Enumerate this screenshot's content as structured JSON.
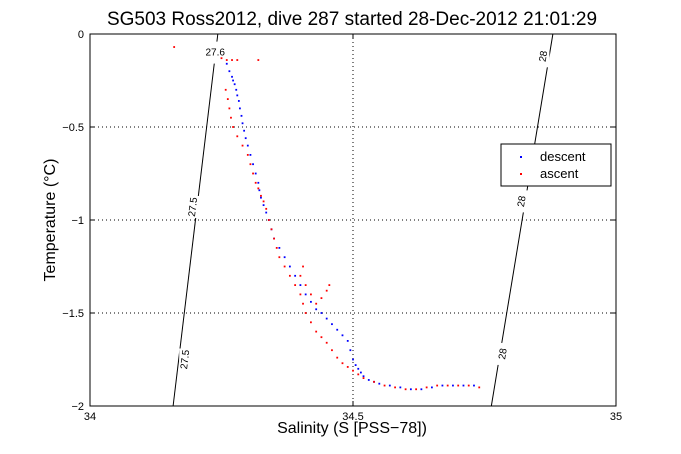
{
  "chart_data": {
    "type": "scatter",
    "title": "SG503 Ross2012, dive 287 started 28-Dec-2012 21:01:29",
    "xlabel": "Salinity (S [PSS−78])",
    "ylabel": "Temperature (°C)",
    "xlim": [
      34,
      35
    ],
    "ylim": [
      -2,
      0
    ],
    "x_ticks": [
      34,
      34.5,
      35
    ],
    "x_tick_labels": [
      "34",
      "34.5",
      "35"
    ],
    "y_ticks": [
      0,
      -0.5,
      -1,
      -1.5,
      -2
    ],
    "y_tick_labels": [
      "0",
      "−0.5",
      "−1",
      "−1.5",
      "−2"
    ],
    "grid": true,
    "legend_position": "right",
    "colors": {
      "descent": "#0000ff",
      "ascent": "#ff0000",
      "contour": "#000000"
    },
    "contours": [
      {
        "label": "27.5",
        "points": [
          [
            34.158,
            -2.0
          ],
          [
            34.243,
            0.0
          ]
        ],
        "label_positions": [
          [
            34.181,
            -1.75
          ],
          [
            34.196,
            -0.93
          ]
        ]
      },
      {
        "label": "27.6",
        "points": [
          [
            34.243,
            0.0
          ],
          [
            34.244,
            0.0
          ]
        ],
        "label_positions": [
          [
            34.238,
            -0.1
          ]
        ]
      },
      {
        "label": "28",
        "points": [
          [
            34.763,
            -2.0
          ],
          [
            34.88,
            0.0
          ]
        ],
        "label_positions": [
          [
            34.785,
            -1.72
          ],
          [
            34.821,
            -0.9
          ],
          [
            34.862,
            -0.12
          ]
        ]
      }
    ],
    "series": [
      {
        "name": "descent",
        "points": [
          [
            34.26,
            -0.16
          ],
          [
            34.265,
            -0.2
          ],
          [
            34.27,
            -0.23
          ],
          [
            34.272,
            -0.25
          ],
          [
            34.275,
            -0.27
          ],
          [
            34.278,
            -0.3
          ],
          [
            34.28,
            -0.33
          ],
          [
            34.283,
            -0.36
          ],
          [
            34.285,
            -0.4
          ],
          [
            34.288,
            -0.44
          ],
          [
            34.29,
            -0.48
          ],
          [
            34.293,
            -0.52
          ],
          [
            34.296,
            -0.56
          ],
          [
            34.3,
            -0.6
          ],
          [
            34.305,
            -0.65
          ],
          [
            34.31,
            -0.7
          ],
          [
            34.315,
            -0.75
          ],
          [
            34.32,
            -0.8
          ],
          [
            34.322,
            -0.84
          ],
          [
            34.325,
            -0.88
          ],
          [
            34.33,
            -0.92
          ],
          [
            34.335,
            -0.96
          ],
          [
            34.34,
            -1.0
          ],
          [
            34.345,
            -1.05
          ],
          [
            34.35,
            -1.1
          ],
          [
            34.36,
            -1.15
          ],
          [
            34.37,
            -1.2
          ],
          [
            34.38,
            -1.25
          ],
          [
            34.39,
            -1.3
          ],
          [
            34.4,
            -1.35
          ],
          [
            34.41,
            -1.4
          ],
          [
            34.42,
            -1.44
          ],
          [
            34.43,
            -1.48
          ],
          [
            34.44,
            -1.5
          ],
          [
            34.45,
            -1.53
          ],
          [
            34.46,
            -1.56
          ],
          [
            34.47,
            -1.59
          ],
          [
            34.48,
            -1.62
          ],
          [
            34.49,
            -1.65
          ],
          [
            34.495,
            -1.7
          ],
          [
            34.5,
            -1.75
          ],
          [
            34.505,
            -1.78
          ],
          [
            34.51,
            -1.8
          ],
          [
            34.515,
            -1.82
          ],
          [
            34.52,
            -1.84
          ],
          [
            34.53,
            -1.86
          ],
          [
            34.54,
            -1.87
          ],
          [
            34.55,
            -1.88
          ],
          [
            34.57,
            -1.89
          ],
          [
            34.59,
            -1.9
          ],
          [
            34.61,
            -1.91
          ],
          [
            34.63,
            -1.91
          ],
          [
            34.65,
            -1.9
          ],
          [
            34.67,
            -1.89
          ],
          [
            34.69,
            -1.89
          ],
          [
            34.71,
            -1.89
          ],
          [
            34.73,
            -1.89
          ]
        ]
      },
      {
        "name": "ascent",
        "points": [
          [
            34.16,
            -0.07
          ],
          [
            34.25,
            -0.13
          ],
          [
            34.26,
            -0.14
          ],
          [
            34.27,
            -0.14
          ],
          [
            34.28,
            -0.14
          ],
          [
            34.32,
            -0.14
          ],
          [
            34.258,
            -0.3
          ],
          [
            34.262,
            -0.35
          ],
          [
            34.265,
            -0.4
          ],
          [
            34.268,
            -0.45
          ],
          [
            34.272,
            -0.5
          ],
          [
            34.28,
            -0.55
          ],
          [
            34.29,
            -0.6
          ],
          [
            34.3,
            -0.65
          ],
          [
            34.305,
            -0.7
          ],
          [
            34.31,
            -0.75
          ],
          [
            34.315,
            -0.8
          ],
          [
            34.32,
            -0.83
          ],
          [
            34.325,
            -0.87
          ],
          [
            34.33,
            -0.9
          ],
          [
            34.335,
            -0.94
          ],
          [
            34.34,
            -1.0
          ],
          [
            34.345,
            -1.05
          ],
          [
            34.35,
            -1.1
          ],
          [
            34.355,
            -1.15
          ],
          [
            34.36,
            -1.2
          ],
          [
            34.37,
            -1.25
          ],
          [
            34.38,
            -1.3
          ],
          [
            34.39,
            -1.35
          ],
          [
            34.4,
            -1.4
          ],
          [
            34.405,
            -1.45
          ],
          [
            34.41,
            -1.5
          ],
          [
            34.42,
            -1.55
          ],
          [
            34.43,
            -1.6
          ],
          [
            34.44,
            -1.63
          ],
          [
            34.45,
            -1.66
          ],
          [
            34.46,
            -1.7
          ],
          [
            34.47,
            -1.74
          ],
          [
            34.48,
            -1.77
          ],
          [
            34.49,
            -1.79
          ],
          [
            34.5,
            -1.81
          ],
          [
            34.51,
            -1.83
          ],
          [
            34.52,
            -1.85
          ],
          [
            34.54,
            -1.87
          ],
          [
            34.56,
            -1.89
          ],
          [
            34.58,
            -1.9
          ],
          [
            34.6,
            -1.91
          ],
          [
            34.62,
            -1.91
          ],
          [
            34.64,
            -1.9
          ],
          [
            34.66,
            -1.89
          ],
          [
            34.68,
            -1.89
          ],
          [
            34.7,
            -1.89
          ],
          [
            34.72,
            -1.89
          ],
          [
            34.74,
            -1.9
          ],
          [
            34.405,
            -1.25
          ],
          [
            34.4,
            -1.3
          ],
          [
            34.41,
            -1.35
          ],
          [
            34.42,
            -1.4
          ],
          [
            34.43,
            -1.45
          ],
          [
            34.44,
            -1.42
          ],
          [
            34.45,
            -1.38
          ],
          [
            34.455,
            -1.35
          ]
        ]
      }
    ]
  }
}
